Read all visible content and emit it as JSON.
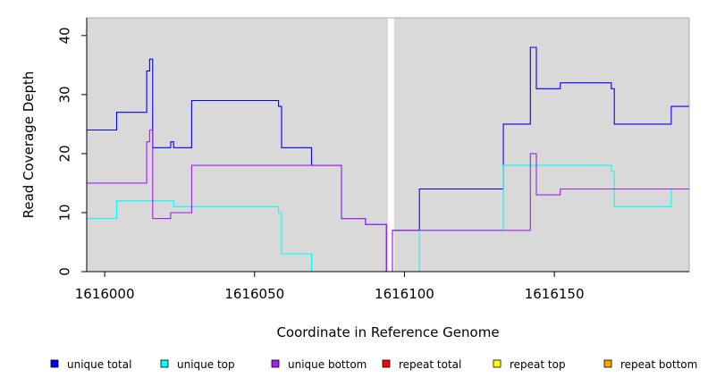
{
  "chart_data": {
    "type": "line",
    "title": "",
    "xlabel": "Coordinate in Reference Genome",
    "ylabel": "Read Coverage Depth",
    "xlim": [
      1615994,
      1616195
    ],
    "ylim": [
      0,
      43
    ],
    "x_ticks": [
      1616000,
      1616050,
      1616100,
      1616150
    ],
    "x_tick_labels": [
      "1616000",
      "1616050",
      "1616100",
      "1616150"
    ],
    "y_ticks": [
      0,
      10,
      20,
      30,
      40
    ],
    "y_tick_labels": [
      "0",
      "10",
      "20",
      "30",
      "40"
    ],
    "grid": false,
    "background_color": "#d9d9d9",
    "gap_band": {
      "x_start": 1616094.5,
      "x_end": 1616096.5,
      "color": "#ffffff"
    },
    "legend_position": "bottom",
    "series": [
      {
        "name": "unique total",
        "color": "#0000ff",
        "steps": [
          [
            1615994,
            24
          ],
          [
            1616004,
            27
          ],
          [
            1616014,
            34
          ],
          [
            1616015,
            36
          ],
          [
            1616016,
            21
          ],
          [
            1616022,
            22
          ],
          [
            1616023,
            21
          ],
          [
            1616029,
            29
          ],
          [
            1616058,
            28
          ],
          [
            1616059,
            21
          ],
          [
            1616069,
            18
          ],
          [
            1616079,
            9
          ],
          [
            1616087,
            8
          ],
          [
            1616094,
            0
          ],
          [
            1616096,
            7
          ],
          [
            1616105,
            14
          ],
          [
            1616133,
            25
          ],
          [
            1616142,
            38
          ],
          [
            1616144,
            31
          ],
          [
            1616152,
            32
          ],
          [
            1616169,
            31
          ],
          [
            1616170,
            25
          ],
          [
            1616189,
            28
          ],
          [
            1616195,
            28
          ]
        ]
      },
      {
        "name": "unique top",
        "color": "#00ffff",
        "steps": [
          [
            1615994,
            9
          ],
          [
            1616004,
            12
          ],
          [
            1616023,
            11
          ],
          [
            1616058,
            10
          ],
          [
            1616059,
            3
          ],
          [
            1616069,
            0
          ],
          [
            1616105,
            7
          ],
          [
            1616133,
            18
          ],
          [
            1616169,
            17
          ],
          [
            1616170,
            11
          ],
          [
            1616189,
            14
          ],
          [
            1616195,
            14
          ]
        ]
      },
      {
        "name": "unique bottom",
        "color": "#a020f0",
        "steps": [
          [
            1615994,
            15
          ],
          [
            1616014,
            22
          ],
          [
            1616015,
            24
          ],
          [
            1616016,
            9
          ],
          [
            1616022,
            10
          ],
          [
            1616029,
            18
          ],
          [
            1616079,
            9
          ],
          [
            1616087,
            8
          ],
          [
            1616094,
            0
          ],
          [
            1616096,
            7
          ],
          [
            1616142,
            20
          ],
          [
            1616144,
            13
          ],
          [
            1616152,
            14
          ],
          [
            1616195,
            14
          ]
        ]
      },
      {
        "name": "repeat total",
        "color": "#ff0000",
        "steps": [
          [
            1615994,
            0
          ],
          [
            1616195,
            0
          ]
        ]
      },
      {
        "name": "repeat top",
        "color": "#ffff00",
        "steps": [
          [
            1615994,
            0
          ],
          [
            1616195,
            0
          ]
        ]
      },
      {
        "name": "repeat bottom",
        "color": "#ffa500",
        "steps": [
          [
            1615994,
            0
          ],
          [
            1616195,
            0
          ]
        ]
      }
    ]
  }
}
